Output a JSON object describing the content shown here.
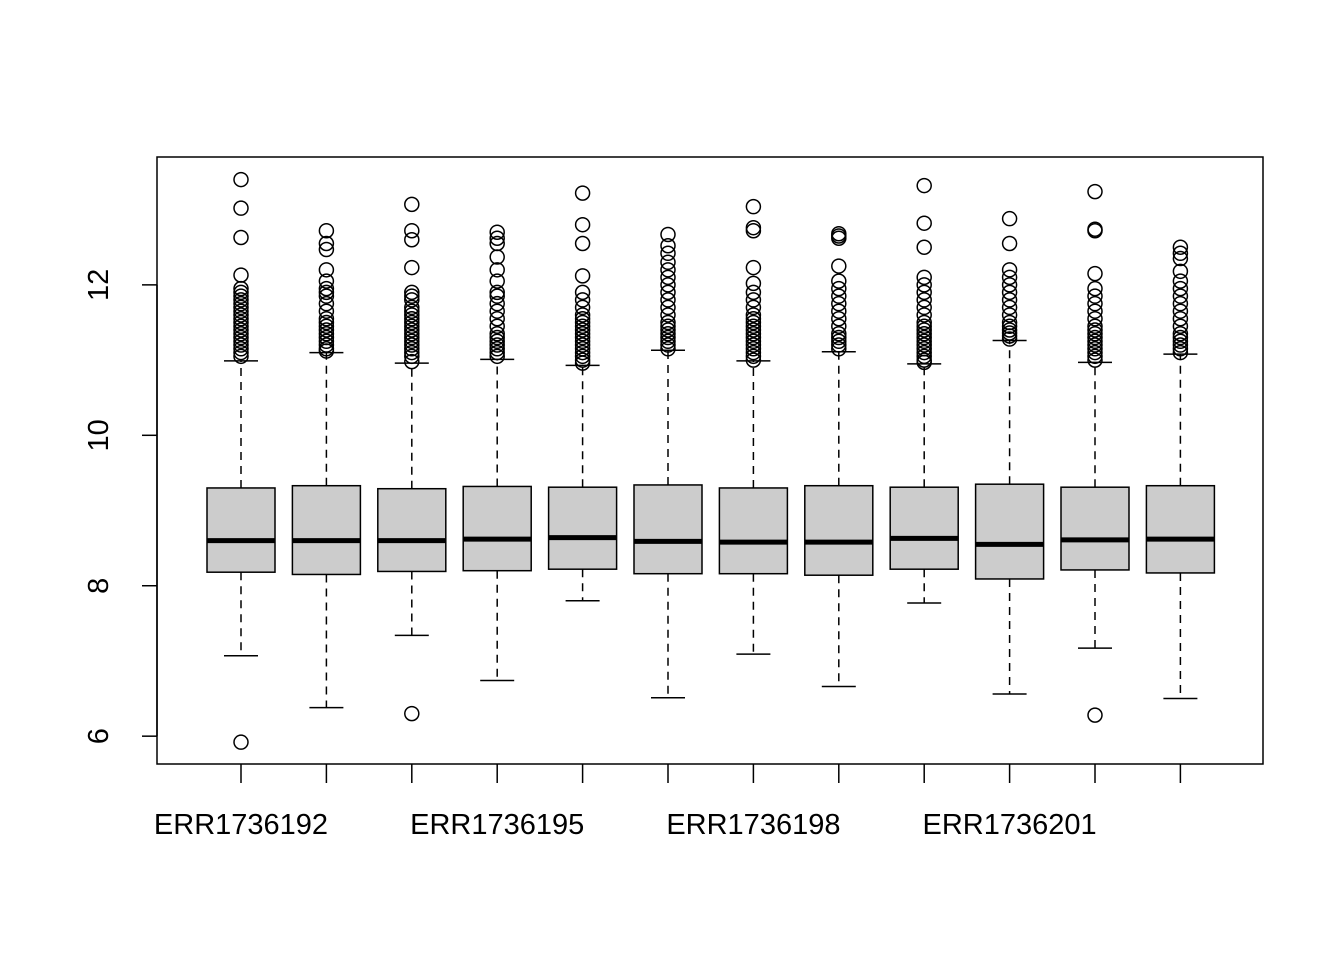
{
  "chart_data": {
    "type": "boxplot",
    "title": "",
    "xlabel": "",
    "ylabel": "",
    "ylim": [
      5.63,
      13.7
    ],
    "y_ticks": [
      6,
      8,
      10,
      12
    ],
    "y_tick_labels": [
      "6",
      "8",
      "10",
      "12"
    ],
    "x_tick_labels": [
      "ERR1736192",
      "",
      "",
      "ERR1736195",
      "",
      "",
      "ERR1736198",
      "",
      "",
      "ERR1736201",
      "",
      ""
    ],
    "box_fill": "#cccccc",
    "line_color": "#000000",
    "boxes": [
      {
        "whisker_low": 7.07,
        "q1": 8.18,
        "median": 8.6,
        "q3": 9.3,
        "whisker_high": 10.99,
        "outliers": [
          5.92,
          11.05,
          11.1,
          11.15,
          11.2,
          11.25,
          11.3,
          11.35,
          11.4,
          11.45,
          11.5,
          11.55,
          11.6,
          11.65,
          11.7,
          11.75,
          11.8,
          11.85,
          11.9,
          11.95,
          12.13,
          12.63,
          13.02,
          13.4
        ]
      },
      {
        "whisker_low": 6.38,
        "q1": 8.15,
        "median": 8.6,
        "q3": 9.33,
        "whisker_high": 11.1,
        "outliers": [
          11.12,
          11.15,
          11.2,
          11.25,
          11.3,
          11.35,
          11.4,
          11.45,
          11.5,
          11.55,
          11.65,
          11.75,
          11.85,
          11.9,
          11.95,
          12.05,
          12.2,
          12.47,
          12.55,
          12.72
        ]
      },
      {
        "whisker_low": 7.34,
        "q1": 8.19,
        "median": 8.6,
        "q3": 9.29,
        "whisker_high": 10.96,
        "outliers": [
          6.3,
          10.98,
          11.05,
          11.1,
          11.15,
          11.2,
          11.25,
          11.3,
          11.35,
          11.4,
          11.45,
          11.5,
          11.55,
          11.6,
          11.65,
          11.7,
          11.8,
          11.85,
          11.9,
          12.23,
          12.6,
          12.72,
          13.07
        ]
      },
      {
        "whisker_low": 6.74,
        "q1": 8.2,
        "median": 8.62,
        "q3": 9.32,
        "whisker_high": 11.01,
        "outliers": [
          11.05,
          11.1,
          11.15,
          11.2,
          11.25,
          11.3,
          11.35,
          11.45,
          11.55,
          11.65,
          11.75,
          11.85,
          11.9,
          12.05,
          12.2,
          12.37,
          12.55,
          12.62,
          12.7
        ]
      },
      {
        "whisker_low": 7.8,
        "q1": 8.22,
        "median": 8.64,
        "q3": 9.31,
        "whisker_high": 10.93,
        "outliers": [
          10.96,
          11.0,
          11.05,
          11.1,
          11.15,
          11.2,
          11.25,
          11.3,
          11.35,
          11.4,
          11.45,
          11.5,
          11.55,
          11.6,
          11.7,
          11.8,
          11.9,
          12.12,
          12.55,
          12.8,
          13.22
        ]
      },
      {
        "whisker_low": 6.51,
        "q1": 8.16,
        "median": 8.59,
        "q3": 9.34,
        "whisker_high": 11.13,
        "outliers": [
          11.15,
          11.2,
          11.25,
          11.3,
          11.35,
          11.4,
          11.45,
          11.5,
          11.6,
          11.7,
          11.8,
          11.9,
          12.0,
          12.1,
          12.2,
          12.3,
          12.42,
          12.52,
          12.67
        ]
      },
      {
        "whisker_low": 7.09,
        "q1": 8.16,
        "median": 8.58,
        "q3": 9.3,
        "whisker_high": 10.99,
        "outliers": [
          11.0,
          11.05,
          11.1,
          11.15,
          11.2,
          11.25,
          11.3,
          11.35,
          11.4,
          11.45,
          11.5,
          11.55,
          11.6,
          11.7,
          11.8,
          11.9,
          12.02,
          12.23,
          12.72,
          12.76,
          13.04
        ]
      },
      {
        "whisker_low": 6.66,
        "q1": 8.14,
        "median": 8.58,
        "q3": 9.33,
        "whisker_high": 11.11,
        "outliers": [
          11.15,
          11.2,
          11.25,
          11.3,
          11.35,
          11.45,
          11.55,
          11.65,
          11.75,
          11.85,
          11.95,
          12.05,
          12.25,
          12.62,
          12.65,
          12.68
        ]
      },
      {
        "whisker_low": 7.77,
        "q1": 8.22,
        "median": 8.63,
        "q3": 9.31,
        "whisker_high": 10.95,
        "outliers": [
          10.97,
          11.0,
          11.05,
          11.1,
          11.15,
          11.2,
          11.25,
          11.3,
          11.35,
          11.4,
          11.45,
          11.5,
          11.6,
          11.7,
          11.8,
          11.9,
          12.0,
          12.1,
          12.5,
          12.82,
          13.32
        ]
      },
      {
        "whisker_low": 6.56,
        "q1": 8.09,
        "median": 8.55,
        "q3": 9.35,
        "whisker_high": 11.26,
        "outliers": [
          11.28,
          11.32,
          11.36,
          11.4,
          11.45,
          11.5,
          11.6,
          11.7,
          11.8,
          11.9,
          12.0,
          12.1,
          12.2,
          12.55,
          12.88
        ]
      },
      {
        "whisker_low": 7.17,
        "q1": 8.21,
        "median": 8.61,
        "q3": 9.31,
        "whisker_high": 10.97,
        "outliers": [
          6.28,
          11.0,
          11.05,
          11.1,
          11.15,
          11.2,
          11.25,
          11.3,
          11.35,
          11.4,
          11.45,
          11.55,
          11.65,
          11.75,
          11.85,
          11.95,
          12.15,
          12.72,
          12.74,
          13.24
        ]
      },
      {
        "whisker_low": 6.5,
        "q1": 8.17,
        "median": 8.62,
        "q3": 9.33,
        "whisker_high": 11.08,
        "outliers": [
          11.1,
          11.15,
          11.2,
          11.25,
          11.3,
          11.35,
          11.45,
          11.55,
          11.65,
          11.75,
          11.85,
          11.95,
          12.05,
          12.18,
          12.35,
          12.42,
          12.5
        ]
      }
    ]
  }
}
